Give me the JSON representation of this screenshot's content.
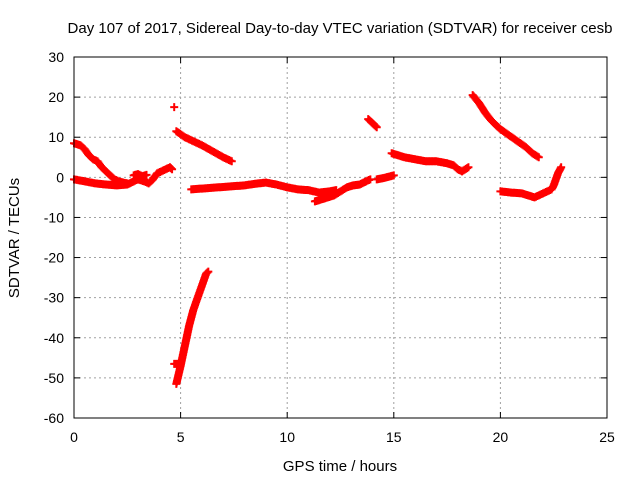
{
  "chart_data": {
    "type": "scatter",
    "title": "Day 107 of 2017, Sidereal Day-to-day VTEC variation (SDTVAR) for receiver cesb",
    "xlabel": "GPS time / hours",
    "ylabel": "SDTVAR / TECUs",
    "xlim": [
      0,
      25
    ],
    "ylim": [
      -60,
      30
    ],
    "xticks": [
      0,
      5,
      10,
      15,
      20,
      25
    ],
    "yticks": [
      -60,
      -50,
      -40,
      -30,
      -20,
      -10,
      0,
      10,
      20,
      30
    ],
    "xtick_labels": [
      "0",
      "5",
      "10",
      "15",
      "20",
      "25"
    ],
    "ytick_labels": [
      "-60",
      "-50",
      "-40",
      "-30",
      "-20",
      "-10",
      "0",
      "10",
      "20",
      "30"
    ],
    "grid": true,
    "legend": "none",
    "marker": "plus",
    "series_color": "#ff0000",
    "segments": [
      {
        "points": [
          [
            0.0,
            8.5
          ],
          [
            0.3,
            8.0
          ],
          [
            0.5,
            7.0
          ],
          [
            0.7,
            5.5
          ],
          [
            0.9,
            4.5
          ],
          [
            1.1,
            4.0
          ],
          [
            1.3,
            2.5
          ],
          [
            1.5,
            1.5
          ],
          [
            1.7,
            0.5
          ],
          [
            1.9,
            -0.5
          ],
          [
            2.1,
            -1.0
          ],
          [
            2.3,
            -1.3
          ],
          [
            2.5,
            -1.5
          ]
        ]
      },
      {
        "points": [
          [
            0.0,
            -0.5
          ],
          [
            0.5,
            -1.0
          ],
          [
            1.0,
            -1.5
          ],
          [
            1.5,
            -1.8
          ],
          [
            2.0,
            -2.0
          ],
          [
            2.5,
            -1.8
          ],
          [
            2.8,
            -1.0
          ],
          [
            3.0,
            -0.5
          ],
          [
            3.3,
            -1.0
          ],
          [
            3.5,
            -1.5
          ],
          [
            3.7,
            -0.5
          ],
          [
            3.9,
            1.0
          ],
          [
            4.1,
            1.5
          ],
          [
            4.3,
            2.0
          ],
          [
            4.5,
            2.5
          ],
          [
            4.6,
            2.0
          ]
        ]
      },
      {
        "points": [
          [
            2.8,
            0.5
          ],
          [
            3.0,
            0.8
          ],
          [
            3.2,
            0.3
          ],
          [
            3.4,
            0.6
          ]
        ]
      },
      {
        "points": [
          [
            4.7,
            17.5
          ]
        ]
      },
      {
        "points": [
          [
            4.8,
            11.5
          ],
          [
            5.2,
            10.0
          ],
          [
            5.6,
            9.0
          ],
          [
            6.0,
            8.0
          ],
          [
            6.5,
            6.5
          ],
          [
            7.0,
            5.0
          ],
          [
            7.4,
            4.0
          ]
        ]
      },
      {
        "points": [
          [
            4.7,
            -46.5
          ],
          [
            4.9,
            -46.5
          ]
        ]
      },
      {
        "points": [
          [
            4.8,
            -51.5
          ],
          [
            5.0,
            -47.0
          ],
          [
            5.2,
            -42.0
          ],
          [
            5.4,
            -37.0
          ],
          [
            5.6,
            -33.0
          ],
          [
            5.8,
            -30.0
          ],
          [
            6.0,
            -27.0
          ],
          [
            6.2,
            -24.0
          ],
          [
            6.3,
            -23.5
          ]
        ]
      },
      {
        "points": [
          [
            5.5,
            -3.0
          ],
          [
            6.0,
            -2.8
          ],
          [
            6.5,
            -2.6
          ],
          [
            7.0,
            -2.4
          ],
          [
            7.5,
            -2.2
          ],
          [
            8.0,
            -2.0
          ],
          [
            8.5,
            -1.6
          ],
          [
            9.0,
            -1.3
          ],
          [
            9.5,
            -1.8
          ],
          [
            10.0,
            -2.5
          ],
          [
            10.5,
            -3.0
          ],
          [
            11.0,
            -3.2
          ],
          [
            11.5,
            -3.8
          ],
          [
            12.0,
            -3.5
          ],
          [
            12.3,
            -3.2
          ]
        ]
      },
      {
        "points": [
          [
            11.3,
            -6.0
          ],
          [
            11.6,
            -5.5
          ],
          [
            11.9,
            -5.0
          ],
          [
            12.2,
            -4.5
          ],
          [
            12.5,
            -3.5
          ],
          [
            12.8,
            -2.5
          ],
          [
            13.1,
            -2.0
          ],
          [
            13.4,
            -1.8
          ],
          [
            13.7,
            -1.0
          ],
          [
            13.9,
            -0.5
          ]
        ]
      },
      {
        "points": [
          [
            13.8,
            14.5
          ],
          [
            14.0,
            13.5
          ],
          [
            14.2,
            12.5
          ]
        ]
      },
      {
        "points": [
          [
            14.2,
            -0.5
          ],
          [
            14.5,
            -0.2
          ],
          [
            14.8,
            0.2
          ],
          [
            15.0,
            0.5
          ]
        ]
      },
      {
        "points": [
          [
            14.9,
            6.0
          ],
          [
            15.2,
            5.5
          ],
          [
            15.5,
            5.0
          ],
          [
            16.0,
            4.5
          ],
          [
            16.5,
            4.0
          ],
          [
            17.0,
            4.0
          ],
          [
            17.5,
            3.5
          ],
          [
            17.8,
            3.0
          ],
          [
            18.0,
            2.0
          ],
          [
            18.2,
            1.5
          ],
          [
            18.5,
            2.5
          ]
        ]
      },
      {
        "points": [
          [
            18.7,
            20.5
          ],
          [
            19.0,
            18.5
          ],
          [
            19.3,
            16.0
          ],
          [
            19.6,
            14.0
          ],
          [
            20.0,
            12.0
          ],
          [
            20.4,
            10.5
          ],
          [
            20.8,
            9.0
          ],
          [
            21.2,
            7.5
          ],
          [
            21.5,
            6.0
          ],
          [
            21.8,
            5.0
          ]
        ]
      },
      {
        "points": [
          [
            20.0,
            -3.5
          ],
          [
            20.5,
            -3.8
          ],
          [
            21.0,
            -4.0
          ],
          [
            21.3,
            -4.5
          ],
          [
            21.6,
            -5.0
          ],
          [
            21.8,
            -4.5
          ],
          [
            22.0,
            -4.0
          ],
          [
            22.2,
            -3.5
          ],
          [
            22.4,
            -3.0
          ],
          [
            22.5,
            -2.0
          ],
          [
            22.6,
            -0.5
          ],
          [
            22.7,
            1.0
          ],
          [
            22.85,
            2.5
          ]
        ]
      }
    ]
  }
}
